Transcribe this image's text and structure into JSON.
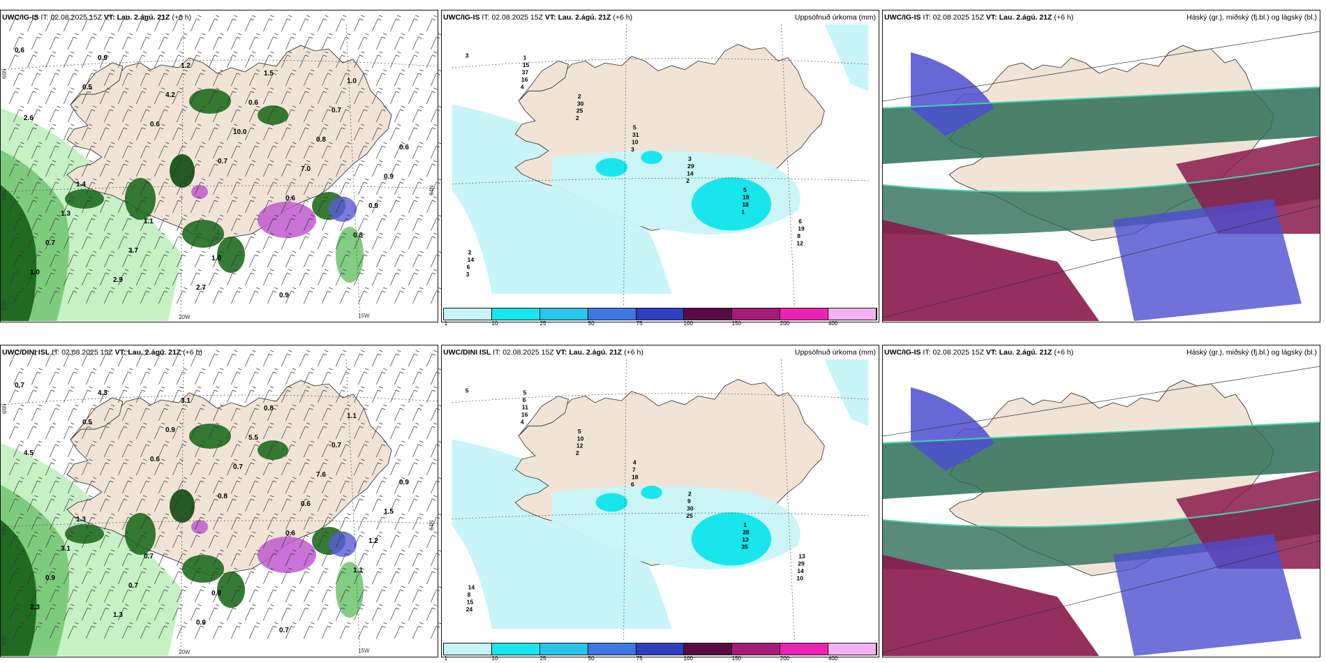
{
  "panels": [
    {
      "model": "UWC/IG-IS",
      "it_label": "IT:",
      "it_value": "02.08.2025 15Z",
      "vt_label": "VT:",
      "vt_value": "Lau. 2.ágú. 21Z",
      "lead": "(+6 h)",
      "right_title": "",
      "kind": "rain-wind"
    },
    {
      "model": "UWC/IG-IS",
      "it_label": "IT:",
      "it_value": "02.08.2025 15Z",
      "vt_label": "VT:",
      "vt_value": "Lau. 2.ágú. 21Z",
      "lead": "(+6 h)",
      "right_title": "Uppsöfnuð úrkoma (mm)",
      "kind": "accum"
    },
    {
      "model": "UWC/IG-IS",
      "it_label": "IT:",
      "it_value": "02.08.2025 15Z",
      "vt_label": "VT:",
      "vt_value": "Lau. 2.ágú. 21Z",
      "lead": "(+6 h)",
      "right_title": "Háský (gr.), miðský (fj.bl.) og lágský (bl.)",
      "kind": "cloud"
    },
    {
      "model": "UWC/DINI ISL",
      "it_label": "IT:",
      "it_value": "02.08.2025 15Z",
      "vt_label": "VT:",
      "vt_value": "Lau. 2.ágú. 21Z",
      "lead": "(+6 h)",
      "right_title": "",
      "kind": "rain-wind"
    },
    {
      "model": "UWC/DINI ISL",
      "it_label": "IT:",
      "it_value": "02.08.2025 15Z",
      "vt_label": "VT:",
      "vt_value": "Lau. 2.ágú. 21Z",
      "lead": "(+6 h)",
      "right_title": "Uppsöfnuð úrkoma (mm)",
      "kind": "accum"
    },
    {
      "model": "UWC/IG-IS",
      "it_label": "IT:",
      "it_value": "02.08.2025 15Z",
      "vt_label": "VT:",
      "vt_value": "Lau. 2.ágú. 21Z",
      "lead": "(+6 h)",
      "right_title": "Háský (gr.), miðský (fj.bl.) og lágský (bl.)",
      "kind": "cloud"
    }
  ],
  "colorbar": {
    "ticks": [
      "1",
      "10",
      "25",
      "50",
      "75",
      "100",
      "150",
      "200",
      "400"
    ],
    "colors": [
      "#c8f5f8",
      "#19e6ec",
      "#27c5e9",
      "#3f78e3",
      "#2e3fbf",
      "#5a0a45",
      "#a31c79",
      "#ec22b4",
      "#f4b0f0"
    ]
  },
  "map_labels": {
    "rain_values_top": [
      "0.6",
      "0.5",
      "0.6",
      "0.7",
      "0.6",
      "0.8",
      "1.0",
      "0.9",
      "4.2",
      "10.0",
      "7.0",
      "0.9",
      "0.7",
      "2.9",
      "1.2",
      "0.6",
      "0.8",
      "0.9",
      "1.3",
      "3.7",
      "2.7",
      "1.5",
      "0.7",
      "0.6",
      "1.4",
      "1.1",
      "1.0",
      "0.9",
      "1.0",
      "2.6"
    ],
    "rain_values_bottom": [
      "0.7",
      "0.5",
      "0.6",
      "0.8",
      "0.6",
      "1.1",
      "2.3",
      "4.3",
      "0.9",
      "0.7",
      "0.6",
      "1.2",
      "0.9",
      "1.3",
      "3.1",
      "5.5",
      "7.6",
      "1.5",
      "3.1",
      "0.7",
      "0.9",
      "0.8",
      "0.7",
      "0.9",
      "1.3",
      "0.7",
      "0.9",
      "0.7",
      "1.1",
      "4.5"
    ],
    "accum_values_top": [
      "3",
      "4",
      "2",
      "3",
      "2",
      "1",
      "12",
      "3",
      "16",
      "25",
      "10",
      "14",
      "18",
      "8",
      "6",
      "37",
      "30",
      "31",
      "29",
      "18",
      "19",
      "14",
      "15",
      "2",
      "5",
      "3",
      "5",
      "6",
      "2",
      "1"
    ],
    "accum_values_bottom": [
      "5",
      "4",
      "2",
      "6",
      "25",
      "35",
      "10",
      "24",
      "16",
      "12",
      "18",
      "30",
      "13",
      "14",
      "15",
      "11",
      "10",
      "7",
      "9",
      "28",
      "29",
      "8",
      "6",
      "5",
      "4",
      "2",
      "1",
      "13",
      "14",
      "5"
    ],
    "lon_20w": "20W",
    "lon_15w": "15W",
    "lat_66n": "66N",
    "lat_64n": "64N",
    "lat_62n": "62N"
  },
  "colors": {
    "land": "#f1e4d7",
    "sea": "#ffffff",
    "rain_light": "#bff0bf",
    "rain_mid": "#74c874",
    "rain_dark": "#1f6b1f",
    "rain_darkest": "#0d4a10",
    "rain_purple": "#c05ad0",
    "rain_blue": "#5a5ad8",
    "cloud_high": "#2e6e58",
    "cloud_mid": "#4c4ed0",
    "cloud_low": "#8a1a4c",
    "cloud_edge": "#3fd6a8"
  }
}
